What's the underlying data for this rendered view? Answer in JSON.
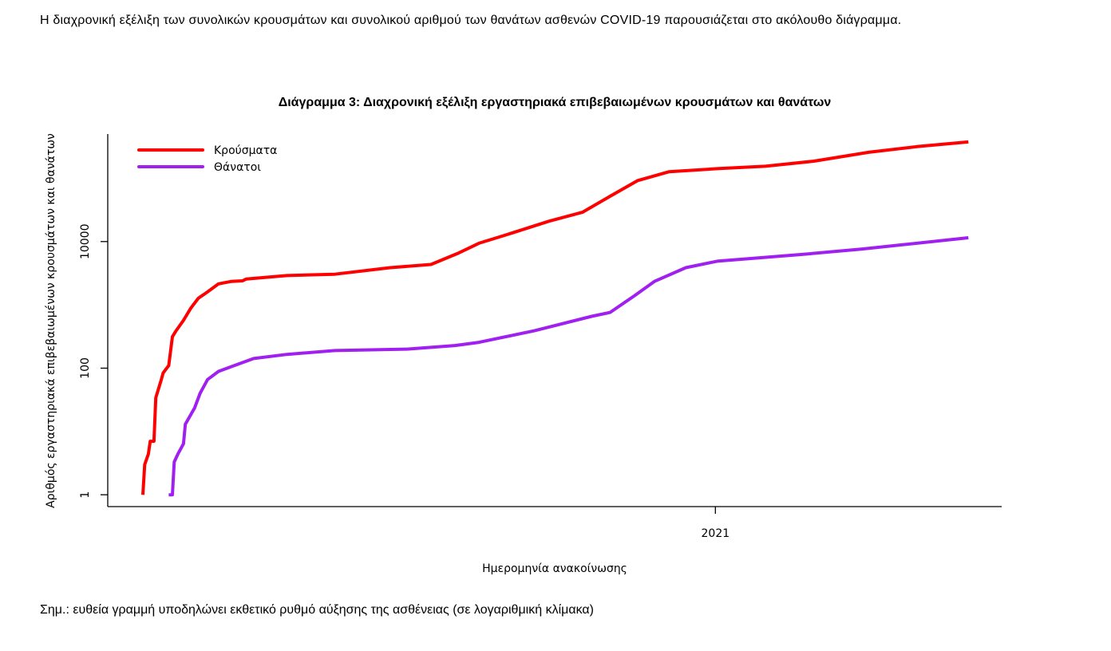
{
  "text": {
    "intro": "Η διαχρονική εξέλιξη των συνολικών κρουσμάτων και συνολικού αριθμού των θανάτων ασθενών COVID-19 παρουσιάζεται στο ακόλουθο διάγραμμα.",
    "note": "Σημ.: ευθεία γραμμή υποδηλώνει εκθετικό ρυθμό αύξησης της ασθένειας (σε λογαριθμική κλίμακα)"
  },
  "chart_data": {
    "type": "line",
    "title": "Διάγραμμα 3: Διαχρονική εξέλιξη εργαστηριακά επιβεβαιωμένων κρουσμάτων και θανάτων",
    "xlabel": "Ημερομηνία ανακοίνωσης",
    "ylabel": "Αριθμός εργαστηριακά επιβεβαιωμένων κρουσμάτων και θανάτων",
    "yscale": "log",
    "ylim": [
      0.65,
      500000
    ],
    "yticks": [
      {
        "value": 1,
        "label": "1"
      },
      {
        "value": 100,
        "label": "100"
      },
      {
        "value": 10000,
        "label": "10000"
      }
    ],
    "x_unit": "days since first case",
    "xlim": [
      -19,
      465
    ],
    "xticks": [
      {
        "value": 310,
        "label": "2021"
      }
    ],
    "legend_position": "top-left",
    "series": [
      {
        "name": "Κρούσματα",
        "color": "#ff0000",
        "x": [
          0,
          1,
          3,
          4,
          6,
          7,
          10,
          11,
          14,
          16,
          18,
          22,
          26,
          30,
          35,
          41,
          48,
          54,
          56,
          78,
          104,
          134,
          156,
          171,
          182,
          199,
          220,
          238,
          253,
          268,
          285,
          311,
          337,
          363,
          393,
          419,
          447
        ],
        "y": [
          1,
          3,
          4.4,
          7,
          7,
          34,
          66,
          84,
          110,
          314,
          390,
          570,
          890,
          1270,
          1600,
          2150,
          2350,
          2400,
          2560,
          2900,
          3050,
          3870,
          4350,
          6600,
          9400,
          13400,
          21000,
          29000,
          52000,
          92000,
          127000,
          142000,
          155000,
          186000,
          257000,
          316000,
          375000
        ]
      },
      {
        "name": "Θάνατοι",
        "color": "#a020f0",
        "x": [
          14,
          16,
          17,
          19,
          22,
          23,
          28,
          31,
          35,
          41,
          48,
          60,
          78,
          104,
          143,
          169,
          182,
          212,
          243,
          253,
          266,
          277,
          294,
          311,
          355,
          389,
          447
        ],
        "y": [
          1,
          1,
          3.3,
          4.4,
          6.4,
          13,
          23.5,
          40,
          66,
          89,
          106,
          142,
          165,
          190,
          200,
          228,
          256,
          390,
          660,
          760,
          1380,
          2350,
          3870,
          4900,
          6200,
          7600,
          11500
        ]
      }
    ]
  }
}
